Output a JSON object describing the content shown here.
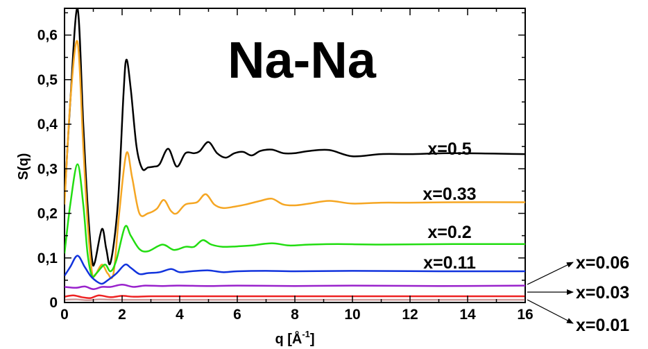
{
  "chart_data": {
    "type": "line",
    "title": "Na-Na",
    "xlabel": "q  [Å",
    "xlabel_sup": "-1",
    "xlabel_close": "]",
    "ylabel": "S(q)",
    "xlim": [
      0,
      16
    ],
    "ylim": [
      0,
      0.66
    ],
    "x_ticks": [
      "0",
      "2",
      "4",
      "6",
      "8",
      "10",
      "12",
      "14",
      "16"
    ],
    "y_ticks": [
      "0",
      "0,1",
      "0,2",
      "0,3",
      "0,4",
      "0,5",
      "0,6"
    ],
    "grid": false,
    "series": [
      {
        "name": "x=0.5",
        "color": "#000000",
        "points": [
          [
            0,
            0.23
          ],
          [
            0.2,
            0.45
          ],
          [
            0.45,
            0.66
          ],
          [
            0.65,
            0.4
          ],
          [
            0.8,
            0.22
          ],
          [
            0.95,
            0.1
          ],
          [
            1.05,
            0.09
          ],
          [
            1.3,
            0.165
          ],
          [
            1.45,
            0.12
          ],
          [
            1.6,
            0.09
          ],
          [
            1.85,
            0.22
          ],
          [
            2.05,
            0.47
          ],
          [
            2.15,
            0.545
          ],
          [
            2.3,
            0.48
          ],
          [
            2.5,
            0.35
          ],
          [
            2.7,
            0.3
          ],
          [
            2.9,
            0.303
          ],
          [
            3.1,
            0.305
          ],
          [
            3.3,
            0.31
          ],
          [
            3.6,
            0.345
          ],
          [
            3.9,
            0.305
          ],
          [
            4.2,
            0.335
          ],
          [
            4.5,
            0.335
          ],
          [
            4.7,
            0.34
          ],
          [
            5.0,
            0.36
          ],
          [
            5.3,
            0.335
          ],
          [
            5.6,
            0.325
          ],
          [
            5.9,
            0.335
          ],
          [
            6.2,
            0.338
          ],
          [
            6.5,
            0.33
          ],
          [
            6.8,
            0.34
          ],
          [
            7.2,
            0.343
          ],
          [
            7.6,
            0.335
          ],
          [
            8.0,
            0.335
          ],
          [
            8.5,
            0.34
          ],
          [
            9.2,
            0.342
          ],
          [
            10.0,
            0.328
          ],
          [
            11.0,
            0.333
          ],
          [
            12.0,
            0.333
          ],
          [
            13.5,
            0.335
          ],
          [
            16,
            0.333
          ]
        ]
      },
      {
        "name": "x=0.33",
        "color": "#f5a623",
        "points": [
          [
            0,
            0.22
          ],
          [
            0.2,
            0.45
          ],
          [
            0.45,
            0.585
          ],
          [
            0.65,
            0.35
          ],
          [
            0.8,
            0.18
          ],
          [
            0.95,
            0.07
          ],
          [
            1.05,
            0.06
          ],
          [
            1.3,
            0.085
          ],
          [
            1.5,
            0.065
          ],
          [
            1.7,
            0.065
          ],
          [
            1.9,
            0.2
          ],
          [
            2.15,
            0.335
          ],
          [
            2.35,
            0.28
          ],
          [
            2.6,
            0.2
          ],
          [
            2.9,
            0.2
          ],
          [
            3.2,
            0.21
          ],
          [
            3.45,
            0.23
          ],
          [
            3.7,
            0.205
          ],
          [
            3.9,
            0.2
          ],
          [
            4.2,
            0.22
          ],
          [
            4.6,
            0.225
          ],
          [
            4.9,
            0.243
          ],
          [
            5.2,
            0.22
          ],
          [
            5.5,
            0.212
          ],
          [
            5.9,
            0.215
          ],
          [
            6.3,
            0.22
          ],
          [
            6.8,
            0.228
          ],
          [
            7.2,
            0.233
          ],
          [
            7.6,
            0.22
          ],
          [
            8.0,
            0.218
          ],
          [
            8.5,
            0.222
          ],
          [
            9.2,
            0.228
          ],
          [
            10.0,
            0.222
          ],
          [
            11.0,
            0.224
          ],
          [
            12.0,
            0.224
          ],
          [
            13.5,
            0.225
          ],
          [
            16,
            0.225
          ]
        ]
      },
      {
        "name": "x=0.2",
        "color": "#22dd11",
        "points": [
          [
            0,
            0.11
          ],
          [
            0.2,
            0.22
          ],
          [
            0.45,
            0.31
          ],
          [
            0.65,
            0.22
          ],
          [
            0.8,
            0.11
          ],
          [
            0.95,
            0.06
          ],
          [
            1.1,
            0.065
          ],
          [
            1.4,
            0.085
          ],
          [
            1.6,
            0.07
          ],
          [
            1.8,
            0.095
          ],
          [
            2.1,
            0.17
          ],
          [
            2.3,
            0.15
          ],
          [
            2.6,
            0.12
          ],
          [
            2.9,
            0.115
          ],
          [
            3.4,
            0.13
          ],
          [
            3.8,
            0.118
          ],
          [
            4.2,
            0.125
          ],
          [
            4.5,
            0.125
          ],
          [
            4.8,
            0.14
          ],
          [
            5.1,
            0.13
          ],
          [
            5.5,
            0.125
          ],
          [
            6.0,
            0.126
          ],
          [
            6.5,
            0.128
          ],
          [
            7.2,
            0.133
          ],
          [
            7.8,
            0.128
          ],
          [
            8.5,
            0.13
          ],
          [
            9.5,
            0.131
          ],
          [
            11.0,
            0.13
          ],
          [
            13.5,
            0.131
          ],
          [
            16,
            0.131
          ]
        ]
      },
      {
        "name": "x=0.11",
        "color": "#1133dd",
        "points": [
          [
            0,
            0.06
          ],
          [
            0.2,
            0.08
          ],
          [
            0.45,
            0.105
          ],
          [
            0.7,
            0.08
          ],
          [
            0.9,
            0.06
          ],
          [
            1.1,
            0.048
          ],
          [
            1.3,
            0.042
          ],
          [
            1.5,
            0.05
          ],
          [
            1.8,
            0.065
          ],
          [
            2.1,
            0.085
          ],
          [
            2.3,
            0.078
          ],
          [
            2.6,
            0.064
          ],
          [
            2.9,
            0.066
          ],
          [
            3.3,
            0.068
          ],
          [
            3.7,
            0.075
          ],
          [
            4.0,
            0.068
          ],
          [
            4.4,
            0.07
          ],
          [
            5.0,
            0.072
          ],
          [
            5.5,
            0.068
          ],
          [
            6.0,
            0.07
          ],
          [
            7.0,
            0.071
          ],
          [
            8.0,
            0.07
          ],
          [
            10.0,
            0.071
          ],
          [
            13.0,
            0.07
          ],
          [
            16,
            0.07
          ]
        ]
      },
      {
        "name": "x=0.06",
        "color": "#9922cc",
        "points": [
          [
            0,
            0.035
          ],
          [
            0.4,
            0.033
          ],
          [
            0.7,
            0.036
          ],
          [
            1.0,
            0.03
          ],
          [
            1.3,
            0.035
          ],
          [
            1.6,
            0.035
          ],
          [
            2.0,
            0.04
          ],
          [
            2.4,
            0.035
          ],
          [
            2.8,
            0.038
          ],
          [
            3.4,
            0.037
          ],
          [
            4.0,
            0.038
          ],
          [
            5.0,
            0.037
          ],
          [
            6.0,
            0.038
          ],
          [
            8.0,
            0.037
          ],
          [
            10.0,
            0.038
          ],
          [
            13.0,
            0.037
          ],
          [
            16,
            0.038
          ]
        ]
      },
      {
        "name": "x=0.03",
        "color": "#ee2222",
        "points": [
          [
            0,
            0.013
          ],
          [
            0.3,
            0.016
          ],
          [
            0.6,
            0.012
          ],
          [
            0.9,
            0.01
          ],
          [
            1.2,
            0.016
          ],
          [
            1.6,
            0.012
          ],
          [
            2.0,
            0.015
          ],
          [
            2.4,
            0.013
          ],
          [
            3.0,
            0.014
          ],
          [
            4.0,
            0.014
          ],
          [
            6.0,
            0.014
          ],
          [
            10.0,
            0.014
          ],
          [
            16,
            0.014
          ]
        ]
      },
      {
        "name": "x=0.01",
        "color": "#cc9999",
        "points": [
          [
            0,
            0.006
          ],
          [
            0.4,
            0.007
          ],
          [
            0.8,
            0.005
          ],
          [
            1.2,
            0.007
          ],
          [
            1.8,
            0.006
          ],
          [
            3.0,
            0.006
          ],
          [
            6.0,
            0.006
          ],
          [
            10.0,
            0.006
          ],
          [
            16,
            0.006
          ]
        ]
      }
    ],
    "inline_labels": [
      "x=0.5",
      "x=0.33",
      "x=0.2",
      "x=0.11"
    ],
    "arrow_labels": [
      "x=0.06",
      "x=0.03",
      "x=0.01"
    ]
  }
}
